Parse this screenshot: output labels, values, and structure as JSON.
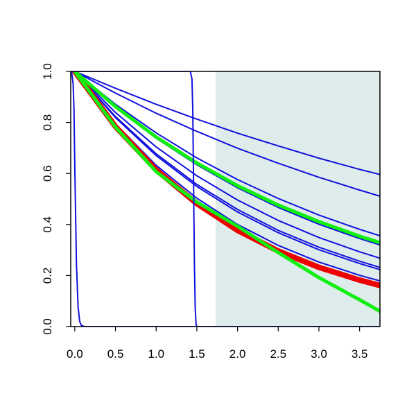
{
  "chart_data": {
    "type": "line",
    "title": "",
    "xlabel": "",
    "ylabel": "",
    "xlim": [
      -0.05,
      3.75
    ],
    "ylim": [
      0.0,
      1.0
    ],
    "x_ticks": [
      "0.0",
      "0.5",
      "1.0",
      "1.5",
      "2.0",
      "2.5",
      "3.0",
      "3.5"
    ],
    "y_ticks": [
      "0.0",
      "0.2",
      "0.4",
      "0.6",
      "0.8",
      "1.0"
    ],
    "shaded_region": {
      "x_from": 1.73,
      "x_to": 3.75,
      "color": "#deeceb"
    },
    "colors": {
      "blue": "#1010dd",
      "red": "#ee0000",
      "green": "#11ee11",
      "axis": "#000000"
    },
    "series": [
      {
        "color": "blue",
        "width": 2,
        "x": [
          0,
          0.5,
          1.0,
          1.5,
          2.0,
          2.5,
          3.0,
          3.5,
          3.75
        ],
        "y": [
          1.0,
          0.934,
          0.871,
          0.813,
          0.758,
          0.708,
          0.66,
          0.616,
          0.596
        ]
      },
      {
        "color": "blue",
        "width": 2,
        "x": [
          0,
          0.5,
          1.0,
          1.5,
          2.0,
          2.5,
          3.0,
          3.5,
          3.75
        ],
        "y": [
          1.0,
          0.915,
          0.836,
          0.765,
          0.699,
          0.64,
          0.585,
          0.535,
          0.511
        ]
      },
      {
        "color": "blue",
        "width": 2,
        "x": [
          0,
          0.5,
          1.0,
          1.5,
          2.0,
          2.5,
          3.0,
          3.5,
          3.75
        ],
        "y": [
          1.0,
          0.871,
          0.759,
          0.661,
          0.576,
          0.502,
          0.437,
          0.381,
          0.356
        ]
      },
      {
        "color": "blue",
        "width": 2,
        "x": [
          0,
          0.5,
          1.0,
          1.5,
          2.0,
          2.5,
          3.0,
          3.5,
          3.75
        ],
        "y": [
          1.0,
          0.859,
          0.738,
          0.634,
          0.544,
          0.467,
          0.401,
          0.345,
          0.32
        ]
      },
      {
        "color": "blue",
        "width": 2,
        "x": [
          0,
          0.5,
          1.0,
          1.5,
          2.0,
          2.5,
          3.0,
          3.5,
          3.75
        ],
        "y": [
          1.0,
          0.839,
          0.704,
          0.591,
          0.496,
          0.416,
          0.349,
          0.293,
          0.268
        ]
      },
      {
        "color": "blue",
        "width": 2,
        "x": [
          0,
          0.5,
          1.0,
          1.5,
          2.0,
          2.5,
          3.0,
          3.5,
          3.75
        ],
        "y": [
          1.0,
          0.823,
          0.677,
          0.557,
          0.459,
          0.377,
          0.311,
          0.256,
          0.232
        ]
      },
      {
        "color": "blue",
        "width": 2,
        "x": [
          0,
          0.5,
          1.0,
          1.5,
          2.0,
          2.5,
          3.0,
          3.5,
          3.75
        ],
        "y": [
          1.0,
          0.819,
          0.67,
          0.549,
          0.449,
          0.368,
          0.301,
          0.247,
          0.223
        ]
      },
      {
        "color": "blue",
        "width": 2,
        "x": [
          0,
          0.5,
          1.0,
          1.5,
          2.0,
          2.5,
          3.0,
          3.5,
          3.75
        ],
        "y": [
          1.0,
          0.795,
          0.632,
          0.503,
          0.4,
          0.318,
          0.253,
          0.201,
          0.179
        ]
      },
      {
        "color": "red",
        "width": 8,
        "x": [
          0,
          0.5,
          1.0,
          1.5,
          2.0,
          2.5,
          3.0,
          3.5,
          3.75
        ],
        "y": [
          1.0,
          0.784,
          0.614,
          0.482,
          0.377,
          0.296,
          0.232,
          0.182,
          0.161
        ]
      },
      {
        "color": "green",
        "width": 5,
        "x": [
          0,
          0.5,
          1.0,
          1.5,
          2.0,
          2.5,
          3.0,
          3.5,
          3.75
        ],
        "y": [
          1.0,
          0.862,
          0.743,
          0.641,
          0.552,
          0.476,
          0.411,
          0.354,
          0.329
        ]
      },
      {
        "color": "green",
        "width": 5,
        "x": [
          0,
          0.5,
          1.0,
          1.5,
          2.0,
          2.5,
          3.0,
          3.5,
          3.75
        ],
        "y": [
          1.0,
          0.782,
          0.607,
          0.488,
          0.393,
          0.29,
          0.192,
          0.105,
          0.06
        ]
      },
      {
        "color": "blue",
        "width": 2,
        "x": [
          -0.04,
          -0.02,
          -0.01,
          0.0,
          0.02,
          0.04,
          0.06,
          0.08,
          0.12,
          3.75
        ],
        "y": [
          1.0,
          0.95,
          0.85,
          0.63,
          0.25,
          0.08,
          0.02,
          0.005,
          0.0,
          0.0
        ]
      },
      {
        "color": "blue",
        "width": 2,
        "x": [
          -0.04,
          1.42,
          1.44,
          1.45,
          1.46,
          1.47,
          1.48,
          1.49,
          1.5,
          3.75
        ],
        "y": [
          1.0,
          1.0,
          0.97,
          0.85,
          0.55,
          0.25,
          0.07,
          0.01,
          0.0,
          0.0
        ]
      }
    ]
  }
}
